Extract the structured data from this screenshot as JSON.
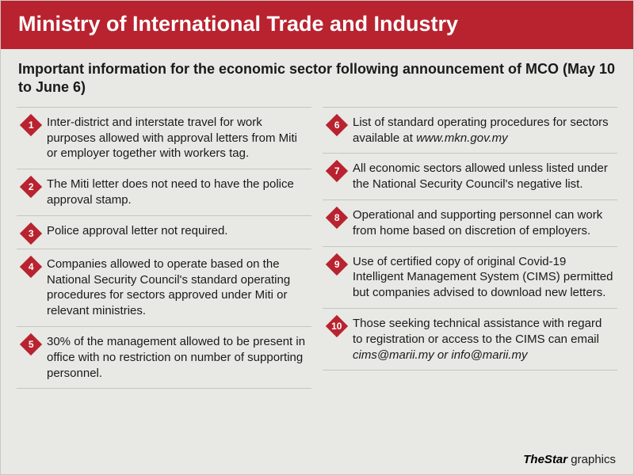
{
  "header": {
    "title": "Ministry of International Trade and Industry"
  },
  "subtitle": "Important information for the economic sector following announcement of MCO (May 10 to June 6)",
  "colors": {
    "accent": "#b8232f",
    "background": "#e8e8e5",
    "text": "#1a1a1a",
    "divider": "#c5c5c2",
    "header_text": "#ffffff"
  },
  "typography": {
    "header_fontsize": 27,
    "subtitle_fontsize": 18,
    "body_fontsize": 15,
    "marker_fontsize": 12
  },
  "items_left": [
    {
      "num": "1",
      "text": "Inter-district and interstate travel for work purposes allowed with approval letters from Miti or employer together with workers tag."
    },
    {
      "num": "2",
      "text": "The Miti letter does not need to have the police approval stamp."
    },
    {
      "num": "3",
      "text": "Police approval letter not required."
    },
    {
      "num": "4",
      "text": "Companies allowed to operate based on the National Security Council's standard operating procedures for sectors approved under Miti or relevant ministries."
    },
    {
      "num": "5",
      "text": "30% of the management allowed to be present in office with no restriction on number of supporting personnel."
    }
  ],
  "items_right": [
    {
      "num": "6",
      "text_pre": "List of standard operating procedures for sectors available at ",
      "text_em": "www.mkn.gov.my",
      "text_post": ""
    },
    {
      "num": "7",
      "text": "All economic sectors allowed unless listed under the National Security Council's negative list."
    },
    {
      "num": "8",
      "text": "Operational and supporting personnel can work from home based on discretion of employers."
    },
    {
      "num": "9",
      "text": "Use of certified copy of original Covid-19 Intelligent Management System (CIMS) permitted but companies advised to download new letters."
    },
    {
      "num": "10",
      "text_pre": "Those seeking technical assistance with regard to registration or access to the CIMS can email ",
      "text_em": "cims@marii.my or info@marii.my",
      "text_post": ""
    }
  ],
  "footer": {
    "brand": "TheStar",
    "suffix": " graphics"
  }
}
